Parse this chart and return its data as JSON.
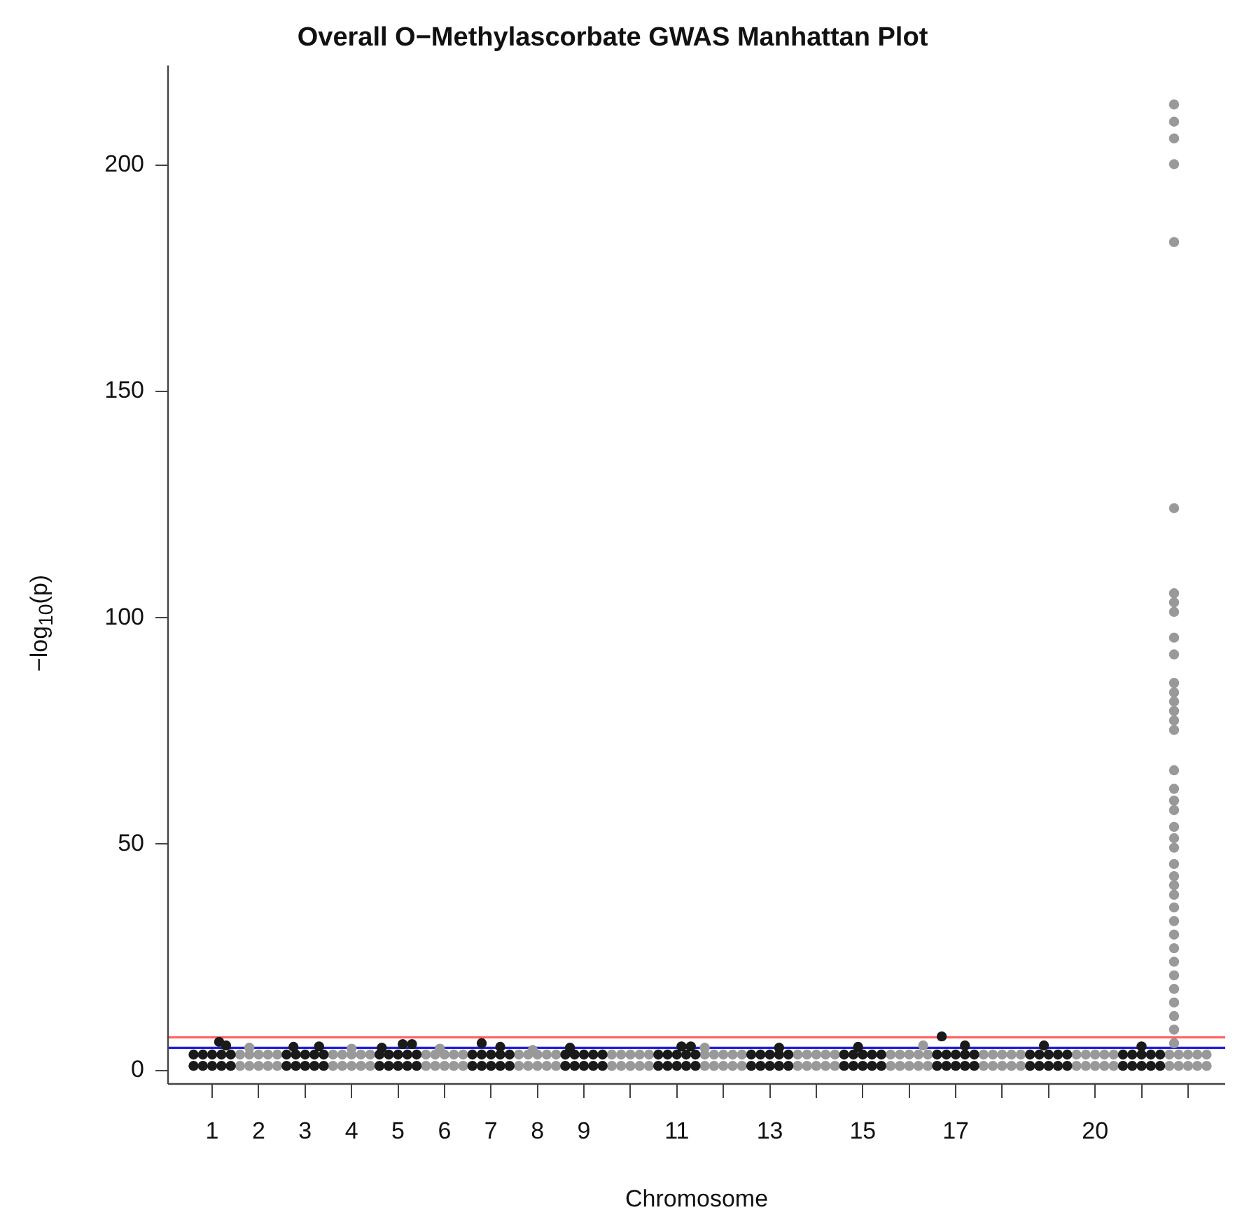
{
  "chart_data": {
    "type": "scatter",
    "title": "Overall O−Methylascorbate GWAS Manhattan Plot",
    "xlabel": "Chromosome",
    "ylabel": "−log$_{10}$(p)",
    "marker": "circle",
    "xlim": [
      0.05,
      22.8
    ],
    "ylim": [
      -3,
      222
    ],
    "yticks": [
      0,
      50,
      100,
      150,
      200
    ],
    "xticks": [
      1,
      2,
      3,
      4,
      5,
      6,
      7,
      8,
      9,
      {
        "value": 10,
        "label": null
      },
      11,
      {
        "value": 12,
        "label": null
      },
      13,
      {
        "value": 14,
        "label": null
      },
      15,
      {
        "value": 16,
        "label": null
      },
      17,
      {
        "value": 18,
        "label": null
      },
      {
        "value": 19,
        "label": null
      },
      20,
      {
        "value": 21,
        "label": null
      },
      {
        "value": 22,
        "label": null
      }
    ],
    "ref_lines": [
      {
        "axis": "y",
        "value": 7.3,
        "color": "#ff6060"
      },
      {
        "axis": "y",
        "value": 5,
        "color": "#2020e0"
      }
    ],
    "series": [
      {
        "color": "#1a1a1a",
        "x": [
          0.6,
          0.6,
          0.8,
          0.8,
          1,
          1,
          1.2,
          1.2,
          1.4,
          1.4,
          2.6,
          2.6,
          2.8,
          2.8,
          3,
          3,
          3.2,
          3.2,
          3.4,
          3.4,
          4.6,
          4.6,
          4.8,
          4.8,
          5,
          5,
          5.2,
          5.2,
          5.4,
          5.4,
          6.6,
          6.6,
          6.8,
          6.8,
          7,
          7,
          7.2,
          7.2,
          7.4,
          7.4,
          8.6,
          8.6,
          8.8,
          8.8,
          9,
          9,
          9.2,
          9.2,
          9.4,
          9.4,
          10.6,
          10.6,
          10.8,
          10.8,
          11,
          11,
          11.2,
          11.2,
          11.4,
          11.4,
          12.6,
          12.6,
          12.8,
          12.8,
          13,
          13,
          13.2,
          13.2,
          13.4,
          13.4,
          14.6,
          14.6,
          14.8,
          14.8,
          15,
          15,
          15.2,
          15.2,
          15.4,
          15.4,
          16.6,
          16.6,
          16.8,
          16.8,
          17,
          17,
          17.2,
          17.2,
          17.4,
          17.4,
          18.6,
          18.6,
          18.8,
          18.8,
          19,
          19,
          19.2,
          19.2,
          19.4,
          19.4,
          20.6,
          20.6,
          20.8,
          20.8,
          21,
          21,
          21.2,
          21.2,
          21.4,
          21.4,
          1.15,
          1.3,
          2.75,
          3.3,
          4.65,
          5.1,
          5.3,
          6.8,
          7.2,
          8.7,
          11.1,
          11.3,
          13.2,
          14.9,
          16.7,
          17.2,
          18.9,
          21
        ],
        "values": [
          1,
          3.5,
          1,
          3.5,
          1,
          3.5,
          1,
          3.5,
          1,
          3.5,
          1,
          3.5,
          1,
          3.5,
          1,
          3.5,
          1,
          3.5,
          1,
          3.5,
          1,
          3.5,
          1,
          3.5,
          1,
          3.5,
          1,
          3.5,
          1,
          3.5,
          1,
          3.5,
          1,
          3.5,
          1,
          3.5,
          1,
          3.5,
          1,
          3.5,
          1,
          3.5,
          1,
          3.5,
          1,
          3.5,
          1,
          3.5,
          1,
          3.5,
          1,
          3.5,
          1,
          3.5,
          1,
          3.5,
          1,
          3.5,
          1,
          3.5,
          1,
          3.5,
          1,
          3.5,
          1,
          3.5,
          1,
          3.5,
          1,
          3.5,
          1,
          3.5,
          1,
          3.5,
          1,
          3.5,
          1,
          3.5,
          1,
          3.5,
          1,
          3.5,
          1,
          3.5,
          1,
          3.5,
          1,
          3.5,
          1,
          3.5,
          1,
          3.5,
          1,
          3.5,
          1,
          3.5,
          1,
          3.5,
          1,
          3.5,
          1,
          3.5,
          1,
          3.5,
          1,
          3.5,
          1,
          3.5,
          1,
          3.5,
          6.3,
          5.5,
          5.2,
          5.3,
          5,
          5.8,
          5.8,
          6,
          5.2,
          5,
          5.3,
          5.3,
          5,
          5.2,
          7.5,
          5.5,
          5.5,
          5.3
        ]
      },
      {
        "color": "#999999",
        "x": [
          1.6,
          1.6,
          1.8,
          1.8,
          2,
          2,
          2.2,
          2.2,
          2.4,
          2.4,
          3.6,
          3.6,
          3.8,
          3.8,
          4,
          4,
          4.2,
          4.2,
          4.4,
          4.4,
          5.6,
          5.6,
          5.8,
          5.8,
          6,
          6,
          6.2,
          6.2,
          6.4,
          6.4,
          7.6,
          7.6,
          7.8,
          7.8,
          8,
          8,
          8.2,
          8.2,
          8.4,
          8.4,
          9.6,
          9.6,
          9.8,
          9.8,
          10,
          10,
          10.2,
          10.2,
          10.4,
          10.4,
          11.6,
          11.6,
          11.8,
          11.8,
          12,
          12,
          12.2,
          12.2,
          12.4,
          12.4,
          13.6,
          13.6,
          13.8,
          13.8,
          14,
          14,
          14.2,
          14.2,
          14.4,
          14.4,
          15.6,
          15.6,
          15.8,
          15.8,
          16,
          16,
          16.2,
          16.2,
          16.4,
          16.4,
          17.6,
          17.6,
          17.8,
          17.8,
          18,
          18,
          18.2,
          18.2,
          18.4,
          18.4,
          19.6,
          19.6,
          19.8,
          19.8,
          20,
          20,
          20.2,
          20.2,
          20.4,
          20.4,
          21.6,
          21.6,
          21.8,
          21.8,
          22,
          22,
          22.2,
          22.2,
          22.4,
          22.4,
          1.8,
          4,
          5.9,
          7.9,
          11.6,
          16.3,
          21.7,
          21.7,
          21.7,
          21.7,
          21.7,
          21.7,
          21.7,
          21.7,
          21.7,
          21.7,
          21.7,
          21.7,
          21.7,
          21.7,
          21.7,
          21.7,
          21.7,
          21.7,
          21.7,
          21.7,
          21.7,
          21.7,
          21.7,
          21.7,
          21.7,
          21.7,
          21.7,
          21.7,
          21.7,
          21.7,
          21.7,
          21.7,
          21.7,
          21.7,
          21.7,
          21.7,
          21.7,
          21.7,
          21.7
        ],
        "values": [
          1,
          3.5,
          1,
          3.5,
          1,
          3.5,
          1,
          3.5,
          1,
          3.5,
          1,
          3.5,
          1,
          3.5,
          1,
          3.5,
          1,
          3.5,
          1,
          3.5,
          1,
          3.5,
          1,
          3.5,
          1,
          3.5,
          1,
          3.5,
          1,
          3.5,
          1,
          3.5,
          1,
          3.5,
          1,
          3.5,
          1,
          3.5,
          1,
          3.5,
          1,
          3.5,
          1,
          3.5,
          1,
          3.5,
          1,
          3.5,
          1,
          3.5,
          1,
          3.5,
          1,
          3.5,
          1,
          3.5,
          1,
          3.5,
          1,
          3.5,
          1,
          3.5,
          1,
          3.5,
          1,
          3.5,
          1,
          3.5,
          1,
          3.5,
          1,
          3.5,
          1,
          3.5,
          1,
          3.5,
          1,
          3.5,
          1,
          3.5,
          1,
          3.5,
          1,
          3.5,
          1,
          3.5,
          1,
          3.5,
          1,
          3.5,
          1,
          3.5,
          1,
          3.5,
          1,
          3.5,
          1,
          3.5,
          1,
          3.5,
          1,
          3.5,
          1,
          3.5,
          1,
          3.5,
          1,
          3.5,
          1,
          3.5,
          5,
          4.8,
          4.8,
          4.5,
          5,
          5.5,
          6,
          9,
          12,
          15,
          18,
          21,
          24,
          27,
          30,
          33,
          36,
          38.8,
          40.9,
          42.9,
          45.6,
          49.2,
          51.3,
          53.8,
          57.5,
          59.6,
          62.2,
          66.3,
          75.2,
          77.3,
          79.4,
          81.5,
          83.5,
          85.6,
          91.9,
          95.6,
          101.3,
          103.4,
          105.4,
          124.2,
          183,
          200.2,
          205.9,
          209.6,
          213.4
        ]
      }
    ]
  }
}
